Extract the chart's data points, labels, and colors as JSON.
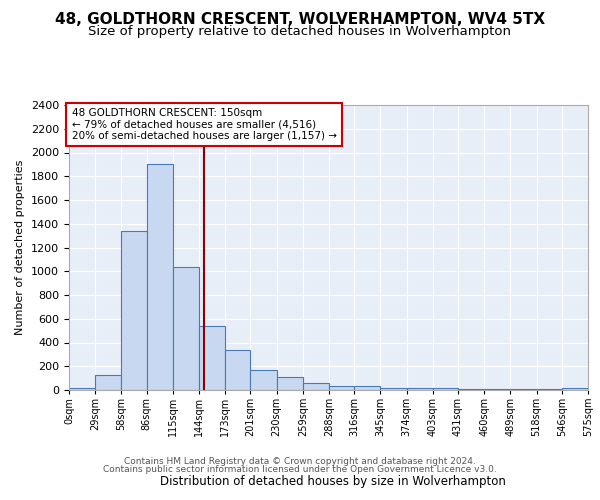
{
  "title1": "48, GOLDTHORN CRESCENT, WOLVERHAMPTON, WV4 5TX",
  "title2": "Size of property relative to detached houses in Wolverhampton",
  "xlabel": "Distribution of detached houses by size in Wolverhampton",
  "ylabel": "Number of detached properties",
  "bar_values": [
    20,
    130,
    1340,
    1900,
    1040,
    540,
    340,
    170,
    110,
    60,
    35,
    30,
    20,
    15,
    20,
    5,
    5,
    5,
    5,
    20
  ],
  "bin_edges": [
    0,
    29,
    58,
    86,
    115,
    144,
    173,
    201,
    230,
    259,
    288,
    316,
    345,
    374,
    403,
    431,
    460,
    489,
    518,
    546,
    575
  ],
  "tick_labels": [
    "0sqm",
    "29sqm",
    "58sqm",
    "86sqm",
    "115sqm",
    "144sqm",
    "173sqm",
    "201sqm",
    "230sqm",
    "259sqm",
    "288sqm",
    "316sqm",
    "345sqm",
    "374sqm",
    "403sqm",
    "431sqm",
    "460sqm",
    "489sqm",
    "518sqm",
    "546sqm",
    "575sqm"
  ],
  "bar_color": "#c8d8f0",
  "bar_edge_color": "#4a7ab5",
  "vline_x": 150,
  "vline_color": "#8b0000",
  "annotation_text": "48 GOLDTHORN CRESCENT: 150sqm\n← 79% of detached houses are smaller (4,516)\n20% of semi-detached houses are larger (1,157) →",
  "annotation_box_color": "white",
  "annotation_box_edge": "#cc0000",
  "ylim": [
    0,
    2400
  ],
  "yticks": [
    0,
    200,
    400,
    600,
    800,
    1000,
    1200,
    1400,
    1600,
    1800,
    2000,
    2200,
    2400
  ],
  "bg_color": "#e8eef8",
  "footer1": "Contains HM Land Registry data © Crown copyright and database right 2024.",
  "footer2": "Contains public sector information licensed under the Open Government Licence v3.0.",
  "title1_fontsize": 11,
  "title2_fontsize": 9.5
}
